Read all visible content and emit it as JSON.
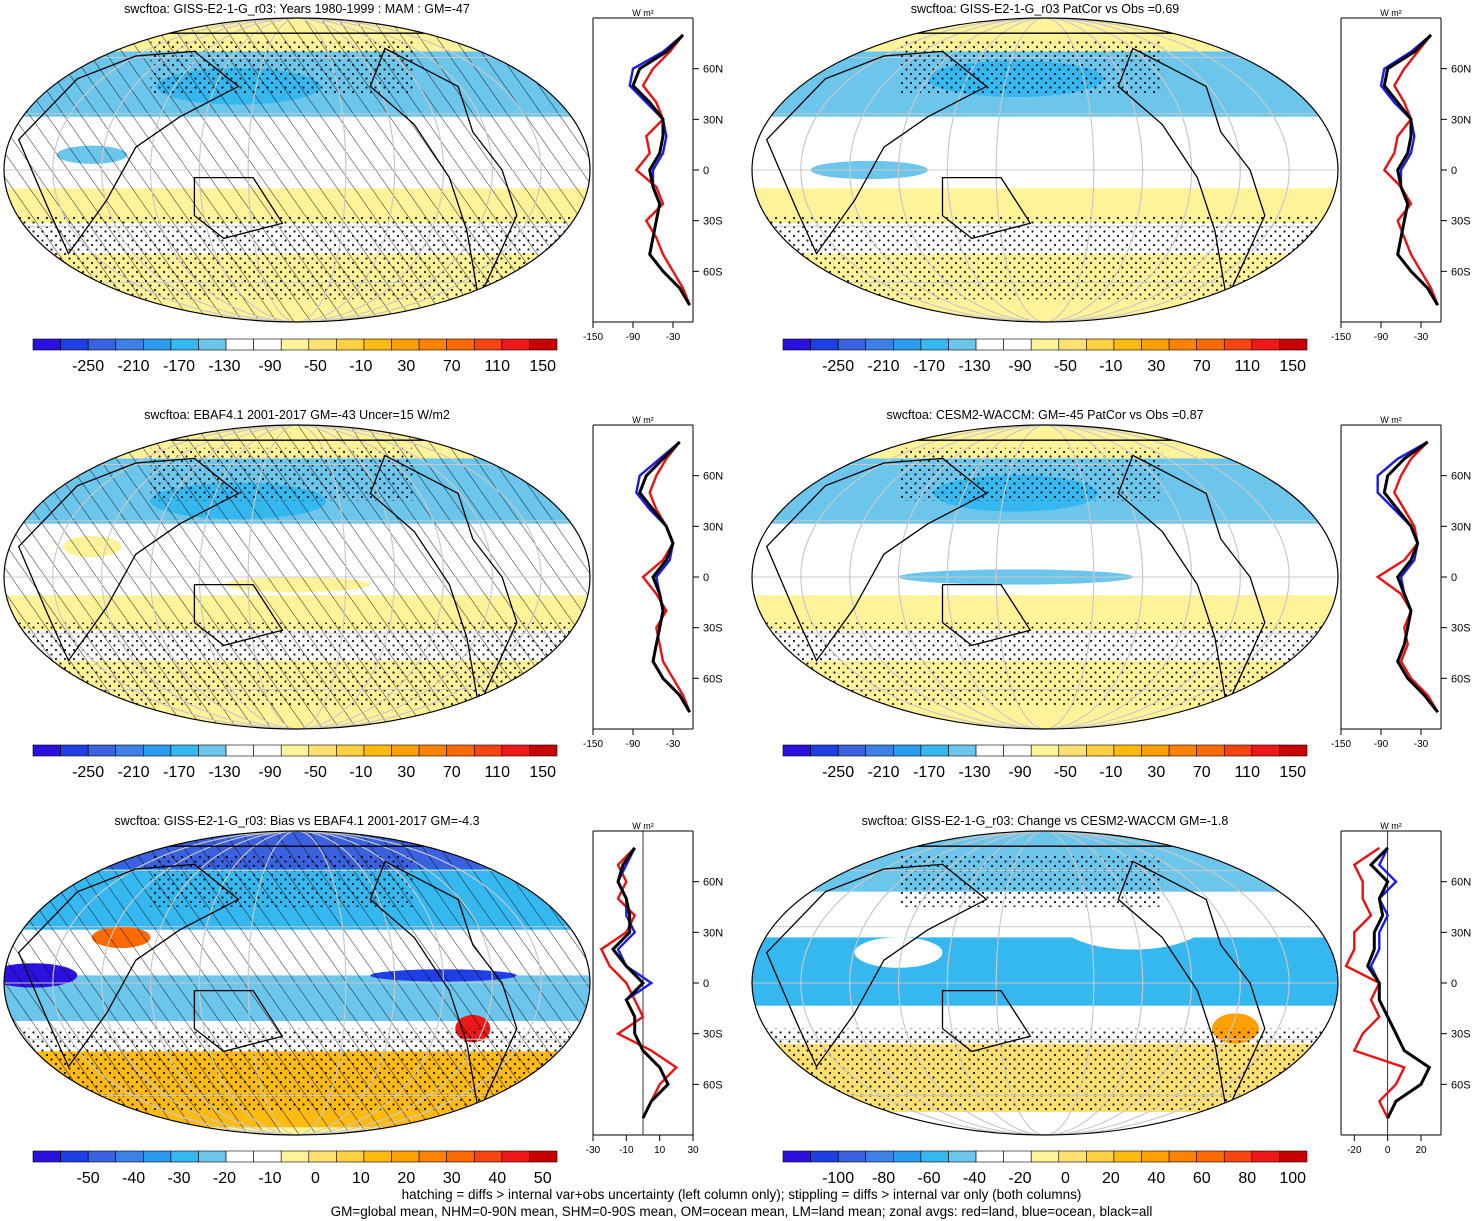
{
  "panels": [
    {
      "title": "swcftoa: GISS-E2-1-G_r03: Years 1980-1999 : MAM : GM=-47",
      "colorbar": [
        "-250",
        "-210",
        "-170",
        "-130",
        "-90",
        "-50",
        "-10",
        "30",
        "70",
        "110",
        "150"
      ],
      "colors": [
        "#2b10e0",
        "#1f3fe6",
        "#3a62e0",
        "#3f80e6",
        "#2a9cf0",
        "#35b8f0",
        "#6cc6ec",
        "#ffffff",
        "#ffffff",
        "#fff39a",
        "#ffe070",
        "#ffd040",
        "#ffbb10",
        "#ffa000",
        "#ff8300",
        "#ff6a00",
        "#f84410",
        "#ee1818",
        "#c80000"
      ],
      "zonal_ticks": [
        "-150",
        "-90",
        "-30"
      ],
      "zonal_unit": "W m²",
      "lat_ticks": [
        "60N",
        "30N",
        "0",
        "30S",
        "60S"
      ]
    },
    {
      "title": "swcftoa: GISS-E2-1-G_r03 PatCor vs Obs =0.69",
      "colorbar": [
        "-250",
        "-210",
        "-170",
        "-130",
        "-90",
        "-50",
        "-10",
        "30",
        "70",
        "110",
        "150"
      ],
      "zonal_ticks": [
        "-150",
        "-90",
        "-30"
      ],
      "zonal_unit": "W m²",
      "lat_ticks": [
        "60N",
        "30N",
        "0",
        "30S",
        "60S"
      ]
    },
    {
      "title": "swcftoa: EBAF4.1 2001-2017 GM=-43 Uncer=15 W/m2",
      "colorbar": [
        "-250",
        "-210",
        "-170",
        "-130",
        "-90",
        "-50",
        "-10",
        "30",
        "70",
        "110",
        "150"
      ],
      "zonal_ticks": [
        "-150",
        "-90",
        "-30"
      ],
      "zonal_unit": "W m²",
      "lat_ticks": [
        "60N",
        "30N",
        "0",
        "30S",
        "60S"
      ]
    },
    {
      "title": "swcftoa: CESM2-WACCM: GM=-45 PatCor vs Obs =0.87",
      "colorbar": [
        "-250",
        "-210",
        "-170",
        "-130",
        "-90",
        "-50",
        "-10",
        "30",
        "70",
        "110",
        "150"
      ],
      "zonal_ticks": [
        "-150",
        "-90",
        "-30"
      ],
      "zonal_unit": "W m²",
      "lat_ticks": [
        "60N",
        "30N",
        "0",
        "30S",
        "60S"
      ]
    },
    {
      "title": "swcftoa: GISS-E2-1-G_r03: Bias vs EBAF4.1 2001-2017 GM=-4.3",
      "colorbar": [
        "-50",
        "-40",
        "-30",
        "-20",
        "-10",
        "0",
        "10",
        "20",
        "30",
        "40",
        "50"
      ],
      "zonal_ticks": [
        "-30",
        "-10",
        "10",
        "30"
      ],
      "zonal_unit": "W m²",
      "lat_ticks": [
        "60N",
        "30N",
        "0",
        "30S",
        "60S"
      ]
    },
    {
      "title": "swcftoa: GISS-E2-1-G_r03: Change vs CESM2-WACCM GM=-1.8",
      "colorbar": [
        "-100",
        "-80",
        "-60",
        "-40",
        "-20",
        "0",
        "20",
        "40",
        "60",
        "80",
        "100"
      ],
      "zonal_ticks": [
        "-20",
        "0",
        "20"
      ],
      "zonal_unit": "W m²",
      "lat_ticks": [
        "60N",
        "30N",
        "0",
        "30S",
        "60S"
      ]
    }
  ],
  "footnote_lines": [
    "hatching = diffs > internal var+obs uncertainty (left column only); stippling = diffs > internal var only (both columns)",
    "GM=global mean, NHM=0-90N mean, SHM=0-90S mean, OM=ocean mean, LM=land mean; zonal avgs: red=land, blue=ocean, black=all"
  ],
  "chart_data": [
    {
      "type": "heatmap",
      "title": "swcftoa: GISS-E2-1-G_r03: Years 1980-1999 : MAM : GM=-47",
      "projection": "Robinson",
      "zonal_profile": {
        "lat": [
          80,
          70,
          60,
          50,
          40,
          30,
          20,
          10,
          0,
          -10,
          -20,
          -30,
          -40,
          -50,
          -60,
          -70,
          -80
        ],
        "series": [
          {
            "name": "land",
            "values": [
              -15,
              -35,
              -60,
              -75,
              -55,
              -45,
              -70,
              -65,
              -85,
              -55,
              -45,
              -70,
              -55,
              -45,
              -30,
              -15,
              -5
            ]
          },
          {
            "name": "ocean",
            "values": [
              -15,
              -45,
              -90,
              -95,
              -70,
              -45,
              -40,
              -45,
              -60,
              -60,
              -50,
              -55,
              -60,
              -65,
              -45,
              -20,
              -5
            ]
          },
          {
            "name": "all",
            "values": [
              -15,
              -40,
              -80,
              -90,
              -65,
              -45,
              -45,
              -50,
              -65,
              -60,
              -50,
              -55,
              -60,
              -65,
              -45,
              -20,
              -5
            ]
          }
        ]
      }
    },
    {
      "type": "heatmap",
      "title": "swcftoa: GISS-E2-1-G_r03 PatCor vs Obs =0.69",
      "projection": "Robinson",
      "zonal_profile": {
        "lat": [
          80,
          70,
          60,
          50,
          40,
          30,
          20,
          10,
          0,
          -10,
          -20,
          -30,
          -40,
          -50,
          -60,
          -70,
          -80
        ],
        "series": [
          {
            "name": "land",
            "values": [
              -15,
              -35,
              -55,
              -70,
              -55,
              -45,
              -65,
              -70,
              -85,
              -60,
              -45,
              -65,
              -55,
              -45,
              -30,
              -15,
              -5
            ]
          },
          {
            "name": "ocean",
            "values": [
              -15,
              -45,
              -85,
              -90,
              -70,
              -45,
              -40,
              -45,
              -60,
              -60,
              -50,
              -55,
              -60,
              -65,
              -45,
              -20,
              -5
            ]
          },
          {
            "name": "all",
            "values": [
              -15,
              -40,
              -80,
              -85,
              -65,
              -45,
              -45,
              -50,
              -65,
              -60,
              -50,
              -55,
              -60,
              -65,
              -45,
              -20,
              -5
            ]
          }
        ]
      }
    },
    {
      "type": "heatmap",
      "title": "swcftoa: EBAF4.1 2001-2017 GM=-43 Uncer=15 W/m2",
      "projection": "Robinson",
      "zonal_profile": {
        "lat": [
          80,
          70,
          60,
          50,
          40,
          30,
          20,
          10,
          0,
          -10,
          -20,
          -30,
          -40,
          -50,
          -60,
          -70,
          -80
        ],
        "series": [
          {
            "name": "land",
            "values": [
              -20,
              -40,
              -55,
              -65,
              -55,
              -40,
              -30,
              -45,
              -75,
              -55,
              -40,
              -55,
              -50,
              -45,
              -30,
              -15,
              -5
            ]
          },
          {
            "name": "ocean",
            "values": [
              -20,
              -50,
              -80,
              -85,
              -65,
              -40,
              -30,
              -35,
              -55,
              -50,
              -45,
              -50,
              -55,
              -60,
              -45,
              -20,
              -5
            ]
          },
          {
            "name": "all",
            "values": [
              -20,
              -45,
              -70,
              -80,
              -60,
              -40,
              -30,
              -40,
              -60,
              -50,
              -45,
              -50,
              -55,
              -60,
              -45,
              -20,
              -5
            ]
          }
        ]
      }
    },
    {
      "type": "heatmap",
      "title": "swcftoa: CESM2-WACCM: GM=-45 PatCor vs Obs =0.87",
      "projection": "Robinson",
      "zonal_profile": {
        "lat": [
          80,
          70,
          60,
          50,
          40,
          30,
          20,
          10,
          0,
          -10,
          -20,
          -30,
          -40,
          -50,
          -60,
          -70,
          -80
        ],
        "series": [
          {
            "name": "land",
            "values": [
              -20,
              -45,
              -60,
              -70,
              -55,
              -40,
              -35,
              -55,
              -95,
              -60,
              -45,
              -55,
              -50,
              -60,
              -45,
              -20,
              -5
            ]
          },
          {
            "name": "ocean",
            "values": [
              -20,
              -65,
              -95,
              -95,
              -70,
              -45,
              -35,
              -40,
              -60,
              -55,
              -45,
              -50,
              -55,
              -65,
              -50,
              -25,
              -5
            ]
          },
          {
            "name": "all",
            "values": [
              -20,
              -55,
              -80,
              -85,
              -65,
              -45,
              -35,
              -45,
              -65,
              -55,
              -45,
              -50,
              -55,
              -65,
              -50,
              -25,
              -5
            ]
          }
        ]
      }
    },
    {
      "type": "heatmap",
      "title": "swcftoa: GISS-E2-1-G_r03: Bias vs EBAF4.1 2001-2017 GM=-4.3",
      "projection": "Robinson",
      "zonal_profile": {
        "lat": [
          80,
          70,
          60,
          50,
          40,
          30,
          20,
          10,
          0,
          -10,
          -20,
          -30,
          -40,
          -50,
          -60,
          -70,
          -80
        ],
        "series": [
          {
            "name": "land",
            "values": [
              -5,
              -15,
              -10,
              -15,
              -5,
              -10,
              -25,
              -20,
              -10,
              -5,
              0,
              -15,
              5,
              20,
              10,
              5,
              0
            ]
          },
          {
            "name": "ocean",
            "values": [
              -5,
              -10,
              -15,
              -10,
              -10,
              -5,
              -15,
              -10,
              5,
              -10,
              -5,
              -5,
              0,
              10,
              15,
              5,
              0
            ]
          },
          {
            "name": "all",
            "values": [
              -5,
              -12,
              -15,
              -10,
              -8,
              -8,
              -18,
              -10,
              0,
              -10,
              -5,
              -5,
              0,
              10,
              15,
              5,
              0
            ]
          }
        ]
      }
    },
    {
      "type": "heatmap",
      "title": "swcftoa: GISS-E2-1-G_r03: Change vs CESM2-WACCM GM=-1.8",
      "projection": "Robinson",
      "zonal_profile": {
        "lat": [
          80,
          70,
          60,
          50,
          40,
          30,
          20,
          10,
          0,
          -10,
          -20,
          -30,
          -40,
          -50,
          -60,
          -70,
          -80
        ],
        "series": [
          {
            "name": "land",
            "values": [
              -5,
              -20,
              -15,
              -15,
              -10,
              -20,
              -20,
              -25,
              -5,
              -10,
              -5,
              -15,
              -20,
              10,
              5,
              -5,
              0
            ]
          },
          {
            "name": "ocean",
            "values": [
              0,
              -5,
              5,
              -5,
              0,
              -5,
              -5,
              -10,
              -5,
              -5,
              0,
              5,
              10,
              25,
              20,
              5,
              0
            ]
          },
          {
            "name": "all",
            "values": [
              0,
              -10,
              0,
              -5,
              -3,
              -8,
              -8,
              -12,
              -5,
              -5,
              0,
              5,
              10,
              25,
              20,
              5,
              0
            ]
          }
        ]
      }
    }
  ]
}
